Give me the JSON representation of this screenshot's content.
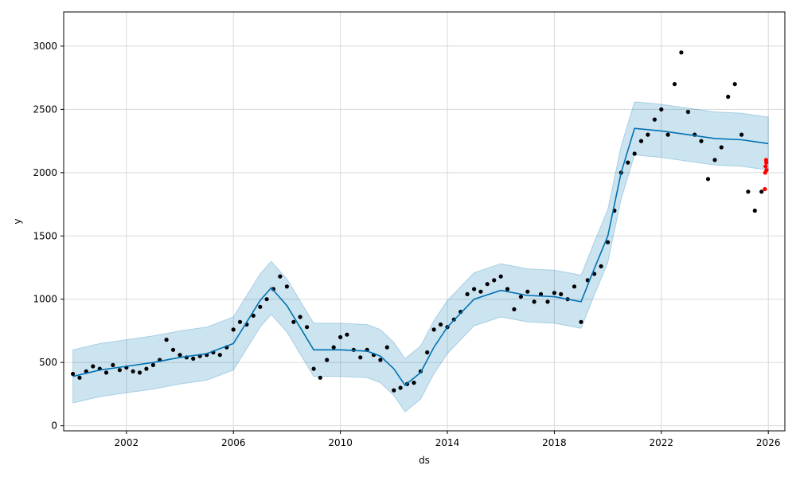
{
  "chart_data": {
    "type": "scatter",
    "xlabel": "ds",
    "ylabel": "y",
    "xlim": [
      "1999-08-28",
      "2026-08-15"
    ],
    "ylim": [
      -40,
      3270
    ],
    "grid": true,
    "x_ticks": [
      "2002",
      "2006",
      "2010",
      "2014",
      "2018",
      "2022",
      "2026"
    ],
    "y_ticks": [
      0,
      500,
      1000,
      1500,
      2000,
      2500,
      3000
    ],
    "colors": {
      "observed_points": "#000000",
      "recent_points": "#ff0000",
      "forecast_line": "#0072B2",
      "uncertainty_band": "#0072B2",
      "grid": "#d9d9d9"
    },
    "series": [
      {
        "kind": "observed",
        "points": [
          [
            "2000-01-01",
            410
          ],
          [
            "2000-04-01",
            380
          ],
          [
            "2000-07-01",
            430
          ],
          [
            "2000-10-01",
            470
          ],
          [
            "2001-01-01",
            450
          ],
          [
            "2001-04-01",
            420
          ],
          [
            "2001-07-01",
            480
          ],
          [
            "2001-10-01",
            440
          ],
          [
            "2002-01-01",
            460
          ],
          [
            "2002-04-01",
            430
          ],
          [
            "2002-07-01",
            420
          ],
          [
            "2002-10-01",
            450
          ],
          [
            "2003-01-01",
            480
          ],
          [
            "2003-04-01",
            520
          ],
          [
            "2003-07-01",
            680
          ],
          [
            "2003-10-01",
            600
          ],
          [
            "2004-01-01",
            560
          ],
          [
            "2004-04-01",
            540
          ],
          [
            "2004-07-01",
            530
          ],
          [
            "2004-10-01",
            550
          ],
          [
            "2005-01-01",
            560
          ],
          [
            "2005-04-01",
            580
          ],
          [
            "2005-07-01",
            560
          ],
          [
            "2005-10-01",
            620
          ],
          [
            "2006-01-01",
            760
          ],
          [
            "2006-04-01",
            820
          ],
          [
            "2006-07-01",
            800
          ],
          [
            "2006-10-01",
            870
          ],
          [
            "2007-01-01",
            940
          ],
          [
            "2007-04-01",
            1000
          ],
          [
            "2007-07-01",
            1080
          ],
          [
            "2007-10-01",
            1180
          ],
          [
            "2008-01-01",
            1100
          ],
          [
            "2008-04-01",
            820
          ],
          [
            "2008-07-01",
            860
          ],
          [
            "2008-10-01",
            780
          ],
          [
            "2009-01-01",
            450
          ],
          [
            "2009-04-01",
            380
          ],
          [
            "2009-07-01",
            520
          ],
          [
            "2009-10-01",
            620
          ],
          [
            "2010-01-01",
            700
          ],
          [
            "2010-04-01",
            720
          ],
          [
            "2010-07-01",
            600
          ],
          [
            "2010-10-01",
            540
          ],
          [
            "2011-01-01",
            600
          ],
          [
            "2011-04-01",
            560
          ],
          [
            "2011-07-01",
            520
          ],
          [
            "2011-10-01",
            620
          ],
          [
            "2012-01-01",
            280
          ],
          [
            "2012-04-01",
            300
          ],
          [
            "2012-07-01",
            330
          ],
          [
            "2012-10-01",
            340
          ],
          [
            "2013-01-01",
            430
          ],
          [
            "2013-04-01",
            580
          ],
          [
            "2013-07-01",
            760
          ],
          [
            "2013-10-01",
            800
          ],
          [
            "2014-01-01",
            780
          ],
          [
            "2014-04-01",
            840
          ],
          [
            "2014-07-01",
            900
          ],
          [
            "2014-10-01",
            1040
          ],
          [
            "2015-01-01",
            1080
          ],
          [
            "2015-04-01",
            1060
          ],
          [
            "2015-07-01",
            1120
          ],
          [
            "2015-10-01",
            1150
          ],
          [
            "2016-01-01",
            1180
          ],
          [
            "2016-04-01",
            1080
          ],
          [
            "2016-07-01",
            920
          ],
          [
            "2016-10-01",
            1020
          ],
          [
            "2017-01-01",
            1060
          ],
          [
            "2017-04-01",
            980
          ],
          [
            "2017-07-01",
            1040
          ],
          [
            "2017-10-01",
            980
          ],
          [
            "2018-01-01",
            1050
          ],
          [
            "2018-04-01",
            1040
          ],
          [
            "2018-07-01",
            1000
          ],
          [
            "2018-10-01",
            1100
          ],
          [
            "2019-01-01",
            820
          ],
          [
            "2019-04-01",
            1150
          ],
          [
            "2019-07-01",
            1200
          ],
          [
            "2019-10-01",
            1260
          ],
          [
            "2020-01-01",
            1450
          ],
          [
            "2020-04-01",
            1700
          ],
          [
            "2020-07-01",
            2000
          ],
          [
            "2020-10-01",
            2080
          ],
          [
            "2021-01-01",
            2150
          ],
          [
            "2021-04-01",
            2250
          ],
          [
            "2021-07-01",
            2300
          ],
          [
            "2021-10-01",
            2420
          ],
          [
            "2022-01-01",
            2500
          ],
          [
            "2022-04-01",
            2300
          ],
          [
            "2022-07-01",
            2700
          ],
          [
            "2022-10-01",
            2950
          ],
          [
            "2023-01-01",
            2480
          ],
          [
            "2023-04-01",
            2300
          ],
          [
            "2023-07-01",
            2250
          ],
          [
            "2023-10-01",
            1950
          ],
          [
            "2024-01-01",
            2100
          ],
          [
            "2024-04-01",
            2200
          ],
          [
            "2024-07-01",
            2600
          ],
          [
            "2024-10-01",
            2700
          ],
          [
            "2025-01-01",
            2300
          ],
          [
            "2025-04-01",
            1850
          ],
          [
            "2025-07-01",
            1700
          ],
          [
            "2025-10-01",
            1850
          ]
        ]
      },
      {
        "kind": "recent",
        "points": [
          [
            "2025-11-15",
            1870
          ],
          [
            "2025-11-20",
            2000
          ],
          [
            "2025-11-25",
            2050
          ],
          [
            "2025-12-01",
            2100
          ],
          [
            "2025-12-05",
            2080
          ],
          [
            "2025-12-08",
            2020
          ]
        ]
      },
      {
        "kind": "forecast",
        "points": [
          [
            "2000-01-01",
            390
          ],
          [
            "2001-01-01",
            440
          ],
          [
            "2002-01-01",
            470
          ],
          [
            "2003-01-01",
            500
          ],
          [
            "2004-01-01",
            540
          ],
          [
            "2005-01-01",
            570
          ],
          [
            "2006-01-01",
            650
          ],
          [
            "2007-01-01",
            990
          ],
          [
            "2007-06-01",
            1090
          ],
          [
            "2008-01-01",
            950
          ],
          [
            "2009-01-01",
            600
          ],
          [
            "2010-01-01",
            600
          ],
          [
            "2011-01-01",
            590
          ],
          [
            "2011-07-01",
            550
          ],
          [
            "2012-01-01",
            450
          ],
          [
            "2012-06-01",
            320
          ],
          [
            "2013-01-01",
            420
          ],
          [
            "2013-07-01",
            620
          ],
          [
            "2014-01-01",
            780
          ],
          [
            "2015-01-01",
            1000
          ],
          [
            "2016-01-01",
            1070
          ],
          [
            "2017-01-01",
            1030
          ],
          [
            "2018-01-01",
            1020
          ],
          [
            "2019-01-01",
            980
          ],
          [
            "2019-06-01",
            1200
          ],
          [
            "2020-01-01",
            1500
          ],
          [
            "2020-07-01",
            2000
          ],
          [
            "2021-01-01",
            2350
          ],
          [
            "2022-01-01",
            2330
          ],
          [
            "2023-01-01",
            2300
          ],
          [
            "2024-01-01",
            2270
          ],
          [
            "2025-01-01",
            2260
          ],
          [
            "2026-01-01",
            2230
          ]
        ],
        "band_halfwidth": 210
      }
    ]
  }
}
